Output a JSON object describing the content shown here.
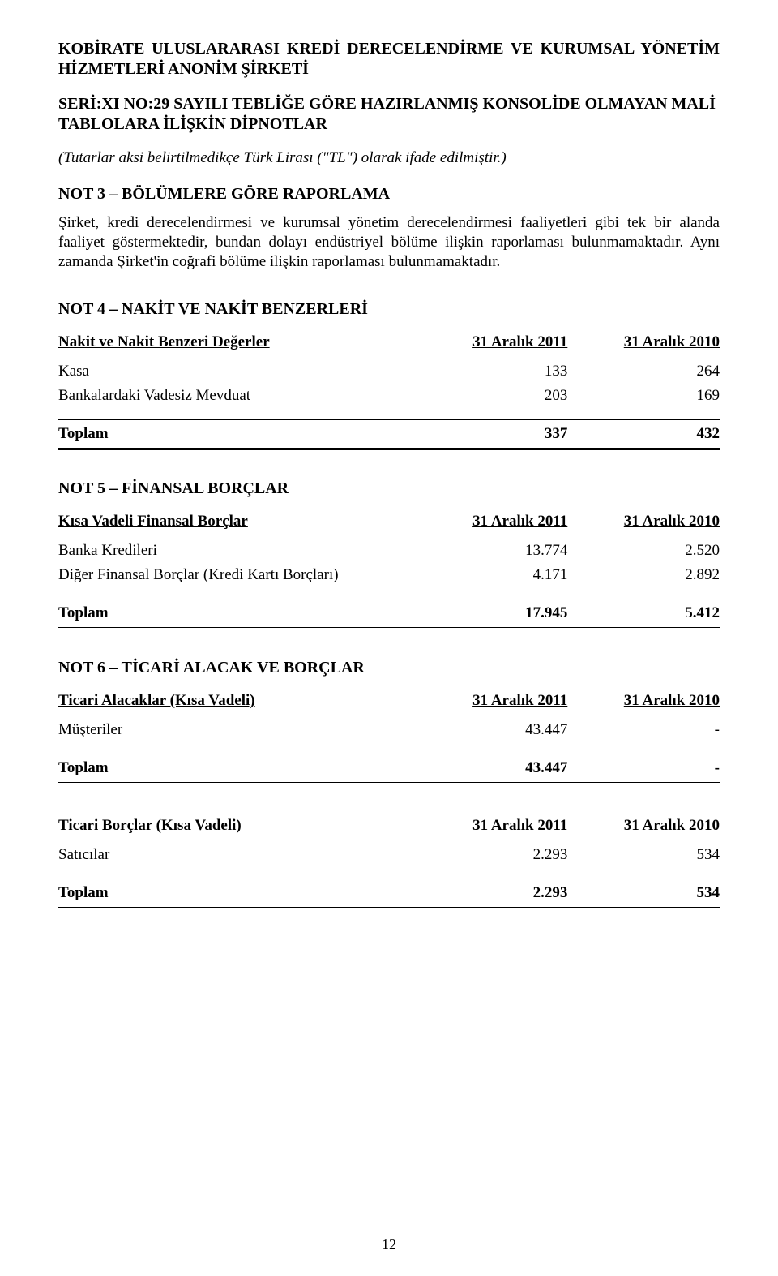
{
  "header": {
    "company_line1": "KOBİRATE ULUSLARARASI KREDİ DERECELENDİRME VE KURUMSAL YÖNETİM HİZMETLERİ ANONİM ŞİRKETİ",
    "serial_line1": "SERİ:XI NO:29 SAYILI TEBLİĞE GÖRE HAZIRLANMIŞ KONSOLİDE OLMAYAN MALİ TABLOLARA İLİŞKİN DİPNOTLAR",
    "currency_note": "(Tutarlar aksi belirtilmedikçe Türk Lirası (\"TL\") olarak ifade edilmiştir.)"
  },
  "note3": {
    "heading": "NOT 3 – BÖLÜMLERE GÖRE RAPORLAMA",
    "body": "Şirket, kredi derecelendirmesi ve kurumsal yönetim derecelendirmesi faaliyetleri gibi tek bir alanda faaliyet göstermektedir, bundan dolayı endüstriyel bölüme ilişkin raporlaması bulunmamaktadır. Aynı zamanda Şirket'in coğrafi bölüme ilişkin raporlaması bulunmamaktadır."
  },
  "note4": {
    "heading": "NOT 4 – NAKİT VE NAKİT BENZERLERİ",
    "table_header": {
      "label": "Nakit ve Nakit Benzeri Değerler",
      "col1": "31 Aralık 2011",
      "col2": "31 Aralık 2010"
    },
    "rows": [
      {
        "label": "Kasa",
        "v1": "133",
        "v2": "264"
      },
      {
        "label": "Bankalardaki Vadesiz Mevduat",
        "v1": "203",
        "v2": "169"
      }
    ],
    "total": {
      "label": "Toplam",
      "v1": "337",
      "v2": "432"
    }
  },
  "note5": {
    "heading": "NOT 5 – FİNANSAL BORÇLAR",
    "table_header": {
      "label": "Kısa Vadeli Finansal Borçlar",
      "col1": "31 Aralık 2011",
      "col2": "31 Aralık 2010"
    },
    "rows": [
      {
        "label": "Banka Kredileri",
        "v1": "13.774",
        "v2": "2.520"
      },
      {
        "label": "Diğer Finansal Borçlar (Kredi Kartı Borçları)",
        "v1": "4.171",
        "v2": "2.892"
      }
    ],
    "total": {
      "label": "Toplam",
      "v1": "17.945",
      "v2": "5.412"
    }
  },
  "note6": {
    "heading": "NOT 6 – TİCARİ ALACAK VE BORÇLAR",
    "tableA": {
      "header": {
        "label": "Ticari Alacaklar (Kısa Vadeli)",
        "col1": "31 Aralık 2011",
        "col2": "31 Aralık 2010"
      },
      "rows": [
        {
          "label": "Müşteriler",
          "v1": "43.447",
          "v2": "-"
        }
      ],
      "total": {
        "label": "Toplam",
        "v1": "43.447",
        "v2": "-"
      }
    },
    "tableB": {
      "header": {
        "label": "Ticari Borçlar (Kısa Vadeli)",
        "col1": "31 Aralık 2011",
        "col2": "31 Aralık 2010"
      },
      "rows": [
        {
          "label": "Satıcılar",
          "v1": "2.293",
          "v2": "534"
        }
      ],
      "total": {
        "label": "Toplam",
        "v1": "2.293",
        "v2": "534"
      }
    }
  },
  "page_number": "12"
}
